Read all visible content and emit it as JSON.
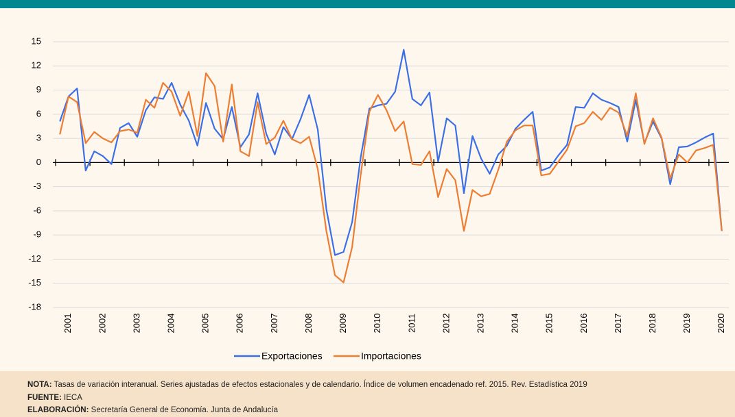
{
  "chart_data": {
    "type": "line",
    "categories": [
      null,
      "2001",
      null,
      null,
      null,
      "2002",
      null,
      null,
      null,
      "2003",
      null,
      null,
      null,
      "2004",
      null,
      null,
      null,
      "2005",
      null,
      null,
      null,
      "2006",
      null,
      null,
      null,
      "2007",
      null,
      null,
      null,
      "2008",
      null,
      null,
      null,
      "2009",
      null,
      null,
      null,
      "2010",
      null,
      null,
      null,
      "2011",
      null,
      null,
      null,
      "2012",
      null,
      null,
      null,
      "2013",
      null,
      null,
      null,
      "2014",
      null,
      null,
      null,
      "2015",
      null,
      null,
      null,
      "2016",
      null,
      null,
      null,
      "2017",
      null,
      null,
      null,
      "2018",
      null,
      null,
      null,
      "2019",
      null,
      null,
      null,
      "2020"
    ],
    "series": [
      {
        "name": "Exportaciones",
        "color": "#3b6fe6",
        "values": [
          5.1,
          8.2,
          9.2,
          -1.0,
          1.4,
          0.8,
          -0.2,
          4.3,
          4.9,
          3.2,
          6.5,
          8.1,
          7.9,
          9.9,
          7.2,
          5.2,
          2.1,
          7.4,
          4.2,
          2.9,
          6.9,
          1.9,
          3.5,
          8.6,
          3.6,
          1.0,
          4.4,
          2.9,
          5.4,
          8.4,
          4.1,
          -5.8,
          -11.5,
          -11.1,
          -7.4,
          0.7,
          6.7,
          7.1,
          7.3,
          8.8,
          14.0,
          7.9,
          7.1,
          8.7,
          0.1,
          5.5,
          4.6,
          -3.8,
          3.3,
          0.5,
          -1.4,
          1.0,
          2.1,
          4.2,
          5.3,
          6.3,
          -1.0,
          -0.6,
          0.9,
          2.2,
          6.9,
          6.8,
          8.6,
          7.8,
          7.4,
          6.9,
          2.6,
          7.8,
          2.4,
          5.1,
          3.0,
          -2.7,
          1.9,
          2.0,
          2.5,
          3.1,
          3.6,
          -8.5
        ]
      },
      {
        "name": "Importaciones",
        "color": "#ed7d31",
        "values": [
          3.5,
          8.2,
          7.5,
          2.4,
          3.8,
          3.0,
          2.5,
          3.9,
          4.1,
          3.7,
          7.8,
          6.8,
          9.9,
          8.8,
          5.8,
          8.8,
          3.3,
          11.1,
          9.5,
          2.6,
          9.7,
          1.4,
          0.8,
          7.5,
          2.3,
          3.1,
          5.2,
          2.9,
          2.4,
          3.2,
          -0.8,
          -8.5,
          -14.0,
          -14.9,
          -10.5,
          -1.5,
          6.3,
          8.4,
          6.5,
          3.9,
          5.1,
          -0.2,
          -0.3,
          1.4,
          -4.3,
          -0.8,
          -2.2,
          -8.5,
          -3.4,
          -4.2,
          -3.9,
          -0.9,
          2.6,
          4.0,
          4.6,
          4.6,
          -1.6,
          -1.4,
          0.1,
          1.6,
          4.5,
          4.9,
          6.3,
          5.3,
          6.8,
          6.2,
          3.3,
          8.6,
          2.3,
          5.5,
          3.1,
          -2.0,
          1.0,
          0.0,
          1.5,
          1.8,
          2.2,
          -8.5
        ]
      }
    ],
    "ylim": [
      -18,
      15
    ],
    "yticks": [
      15,
      12,
      9,
      6,
      3,
      0,
      -3,
      -6,
      -9,
      -12,
      -15,
      -18
    ],
    "grid": true,
    "legend": "bottom"
  },
  "notes": {
    "nota": {
      "label": "NOTA:",
      "text": "Tasas de variación interanual. Series ajustadas de efectos estacionales y de calendario. Índice de volumen encadenado ref. 2015. Rev. Estadística 2019"
    },
    "fuente": {
      "label": "FUENTE:",
      "text": "IECA"
    },
    "elaboracion": {
      "label": "ELABORACIÓN:",
      "text": "Secretaría General de Economía. Junta de Andalucía"
    }
  }
}
